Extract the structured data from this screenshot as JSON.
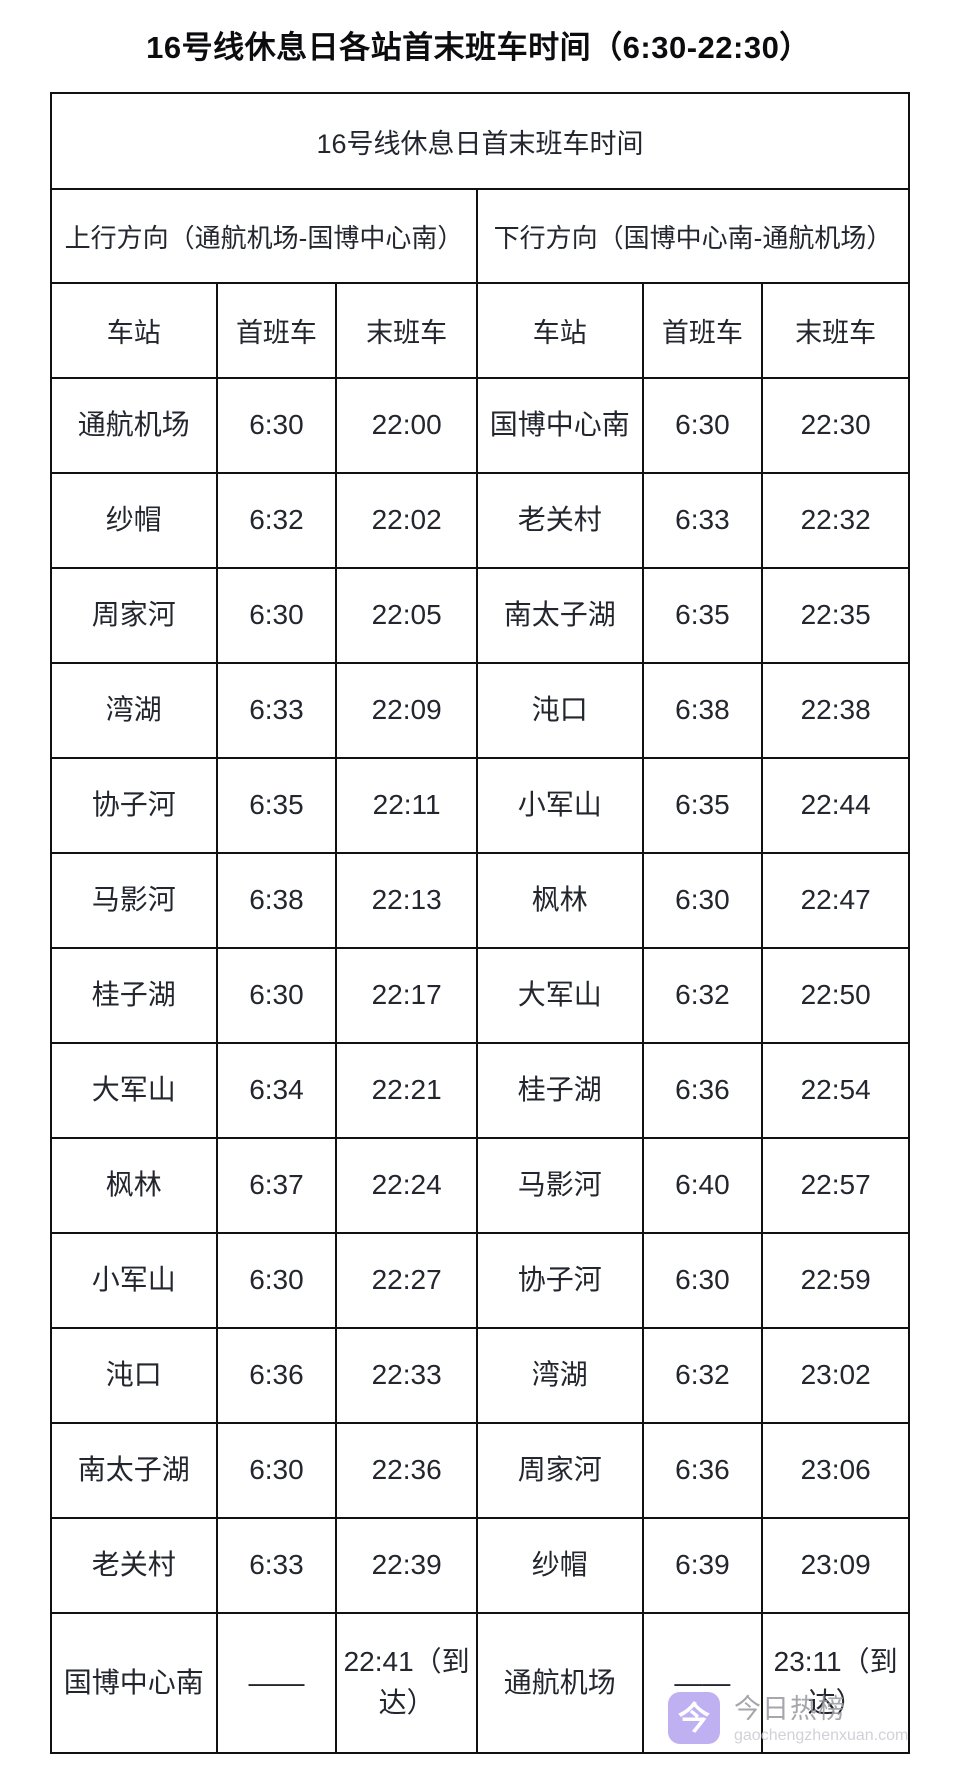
{
  "page": {
    "title": "16号线休息日各站首末班车时间（6:30-22:30）"
  },
  "table": {
    "caption": "16号线休息日首末班车时间",
    "directions": {
      "up": "上行方向（通航机场-国博中心南）",
      "down": "下行方向（国博中心南-通航机场）"
    },
    "column_headers": [
      "车站",
      "首班车",
      "末班车",
      "车站",
      "首班车",
      "末班车"
    ],
    "rows": [
      [
        "通航机场",
        "6:30",
        "22:00",
        "国博中心南",
        "6:30",
        "22:30"
      ],
      [
        "纱帽",
        "6:32",
        "22:02",
        "老关村",
        "6:33",
        "22:32"
      ],
      [
        "周家河",
        "6:30",
        "22:05",
        "南太子湖",
        "6:35",
        "22:35"
      ],
      [
        "湾湖",
        "6:33",
        "22:09",
        "沌口",
        "6:38",
        "22:38"
      ],
      [
        "协子河",
        "6:35",
        "22:11",
        "小军山",
        "6:35",
        "22:44"
      ],
      [
        "马影河",
        "6:38",
        "22:13",
        "枫林",
        "6:30",
        "22:47"
      ],
      [
        "桂子湖",
        "6:30",
        "22:17",
        "大军山",
        "6:32",
        "22:50"
      ],
      [
        "大军山",
        "6:34",
        "22:21",
        "桂子湖",
        "6:36",
        "22:54"
      ],
      [
        "枫林",
        "6:37",
        "22:24",
        "马影河",
        "6:40",
        "22:57"
      ],
      [
        "小军山",
        "6:30",
        "22:27",
        "协子河",
        "6:30",
        "22:59"
      ],
      [
        "沌口",
        "6:36",
        "22:33",
        "湾湖",
        "6:32",
        "23:02"
      ],
      [
        "南太子湖",
        "6:30",
        "22:36",
        "周家河",
        "6:36",
        "23:06"
      ],
      [
        "老关村",
        "6:33",
        "22:39",
        "纱帽",
        "6:39",
        "23:09"
      ],
      [
        "国博中心南",
        "——",
        "22:41（到达）",
        "通航机场",
        "——",
        "23:11（到达）"
      ]
    ]
  },
  "watermark": {
    "icon_char": "今",
    "name": "今日热榜",
    "url_text": "gaochengzhenxuan.com",
    "icon_color": "#b5a3ef"
  },
  "colors": {
    "border": "#111111",
    "text": "#23262e",
    "title": "#0c0c0f"
  }
}
